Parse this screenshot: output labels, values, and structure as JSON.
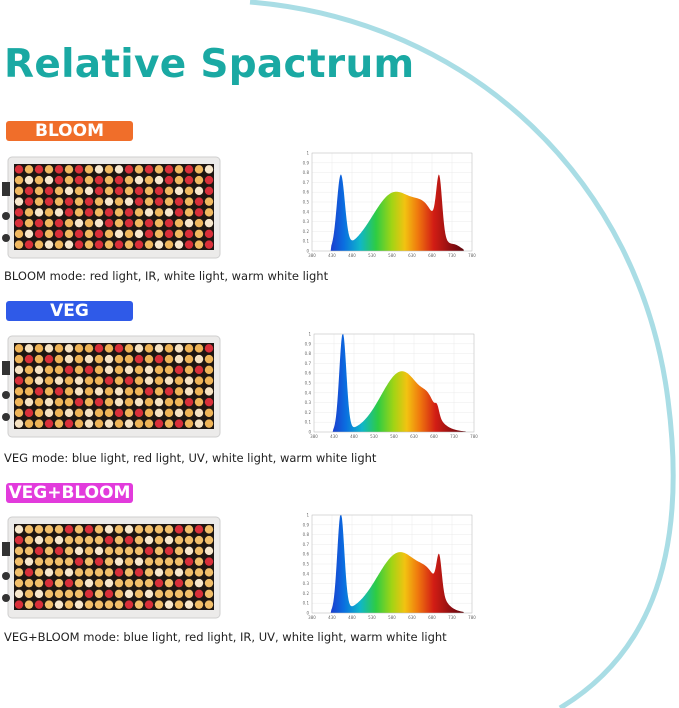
{
  "title": "Relative Spactrum",
  "colors": {
    "title": "#1aa9a3",
    "arc": "#a9dde5"
  },
  "modes": [
    {
      "id": "bloom",
      "badge": "BLOOM",
      "badge_color": "#f06e2a",
      "caption": "BLOOM mode: red light, IR, white light, warm white light",
      "led_base": "warm",
      "chart": {
        "x_ticks": [
          "380",
          "430",
          "480",
          "530",
          "580",
          "630",
          "680",
          "730",
          "780"
        ],
        "y_ticks": [
          "1",
          "0.9",
          "0.8",
          "0.7",
          "0.6",
          "0.5",
          "0.4",
          "0.3",
          "0.2",
          "0.1",
          "0"
        ]
      }
    },
    {
      "id": "veg",
      "badge": "VEG",
      "badge_color": "#2f5ae8",
      "caption": "VEG mode: blue light, red light, UV, white light, warm white light",
      "led_base": "warm",
      "chart": {
        "x_ticks": [
          "380",
          "430",
          "480",
          "530",
          "580",
          "630",
          "680",
          "730",
          "780"
        ],
        "y_ticks": [
          "1",
          "0.9",
          "0.8",
          "0.7",
          "0.6",
          "0.5",
          "0.4",
          "0.3",
          "0.2",
          "0.1",
          "0"
        ]
      }
    },
    {
      "id": "vegbloom",
      "badge": "VEG+BLOOM",
      "badge_color": "#e23bdc",
      "caption": "VEG+BLOOM mode: blue light, red light, IR, UV, white light, warm white light",
      "led_base": "warm",
      "chart": {
        "x_ticks": [
          "380",
          "430",
          "480",
          "530",
          "580",
          "630",
          "680",
          "730",
          "780"
        ],
        "y_ticks": [
          "1",
          "0.9",
          "0.8",
          "0.7",
          "0.6",
          "0.5",
          "0.4",
          "0.3",
          "0.2",
          "0.1",
          "0"
        ]
      }
    }
  ]
}
